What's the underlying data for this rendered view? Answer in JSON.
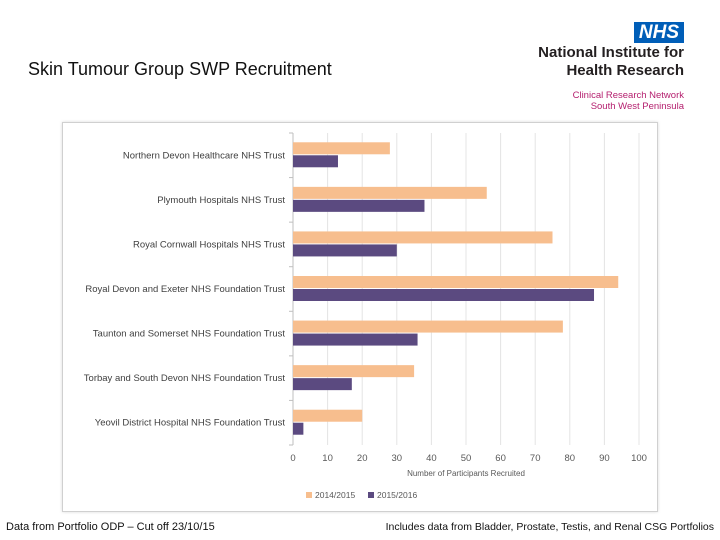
{
  "slide": {
    "title": "Skin Tumour Group SWP Recruitment",
    "footer_left": "Data from Portfolio ODP – Cut off 23/10/15",
    "footer_right": "Includes data from Bladder, Prostate, Testis, and Renal CSG Portfolios"
  },
  "logo": {
    "badge": "NHS",
    "line1": "National Institute for",
    "line2": "Health Research",
    "network1": "Clinical Research Network",
    "network2": "South West Peninsula"
  },
  "chart_data": {
    "type": "bar",
    "orientation": "horizontal",
    "categories": [
      "Northern Devon Healthcare NHS Trust",
      "Plymouth Hospitals NHS Trust",
      "Royal Cornwall Hospitals NHS Trust",
      "Royal Devon and Exeter NHS Foundation Trust",
      "Taunton and Somerset NHS Foundation Trust",
      "Torbay and South Devon NHS Foundation Trust",
      "Yeovil District Hospital NHS Foundation Trust"
    ],
    "series": [
      {
        "name": "2014/2015",
        "color": "#f7be8e",
        "values": [
          28,
          56,
          75,
          94,
          78,
          35,
          20
        ]
      },
      {
        "name": "2015/2016",
        "color": "#5b4a80",
        "values": [
          13,
          38,
          30,
          87,
          36,
          17,
          3
        ]
      }
    ],
    "xlabel": "Number of Participants Recruited",
    "xlim": [
      0,
      100
    ],
    "xticks": [
      0,
      10,
      20,
      30,
      40,
      50,
      60,
      70,
      80,
      90,
      100
    ],
    "grid": true,
    "legend_position": "bottom"
  }
}
